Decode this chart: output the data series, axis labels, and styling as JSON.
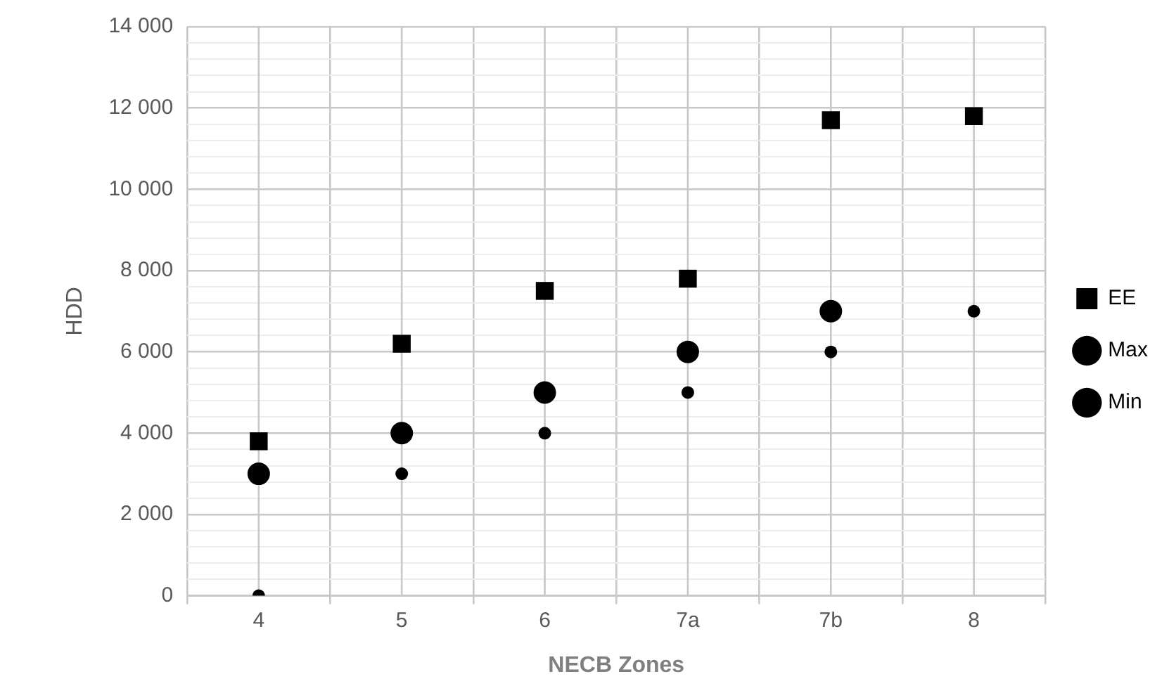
{
  "chart_data": {
    "type": "scatter",
    "xlabel": "NECB Zones",
    "ylabel": "HDD",
    "categories": [
      "4",
      "5",
      "6",
      "7a",
      "7b",
      "8"
    ],
    "series": [
      {
        "name": "EE",
        "color": "#000000",
        "marker": "square",
        "values": [
          3800,
          6200,
          7500,
          7800,
          11700,
          11800
        ]
      },
      {
        "name": "Max",
        "color": "#000000",
        "marker": "circle",
        "values": [
          3000,
          4000,
          5000,
          6000,
          7000,
          null
        ]
      },
      {
        "name": "Min",
        "color": "#000000",
        "marker": "circle",
        "values": [
          0,
          3000,
          4000,
          5000,
          6000,
          7000
        ]
      }
    ],
    "ylim": [
      0,
      14000
    ],
    "yticks": [
      0,
      {
        "value": 400,
        "label": null
      },
      {
        "value": 800,
        "label": null
      },
      {
        "value": 1200,
        "label": null
      },
      {
        "value": 1600,
        "label": null
      },
      {
        "value": 2000,
        "label": "2 000"
      },
      {
        "value": 2400,
        "label": null
      },
      {
        "value": 2800,
        "label": null
      },
      {
        "value": 3200,
        "label": null
      },
      {
        "value": 3600,
        "label": null
      },
      {
        "value": 4000,
        "label": "4 000"
      },
      {
        "value": 4400,
        "label": null
      },
      {
        "value": 4800,
        "label": null
      },
      {
        "value": 5200,
        "label": null
      },
      {
        "value": 5600,
        "label": null
      },
      {
        "value": 6000,
        "label": "6 000"
      },
      {
        "value": 6400,
        "label": null
      },
      {
        "value": 6800,
        "label": null
      },
      {
        "value": 7200,
        "label": null
      },
      {
        "value": 7600,
        "label": null
      },
      {
        "value": 8000,
        "label": "8 000"
      },
      {
        "value": 8400,
        "label": null
      },
      {
        "value": 8800,
        "label": null
      },
      {
        "value": 9200,
        "label": null
      },
      {
        "value": 9600,
        "label": null
      },
      {
        "value": 10000,
        "label": "10 000"
      },
      {
        "value": 10400,
        "label": null
      },
      {
        "value": 10800,
        "label": null
      },
      {
        "value": 11200,
        "label": null
      },
      {
        "value": 11600,
        "label": null
      },
      {
        "value": 12000,
        "label": "12 000"
      },
      {
        "value": 12400,
        "label": null
      },
      {
        "value": 12800,
        "label": null
      },
      {
        "value": 13200,
        "label": null
      },
      {
        "value": 13600,
        "label": null
      },
      {
        "value": 14000,
        "label": "14 000"
      }
    ],
    "grid": true,
    "legend": "right"
  }
}
